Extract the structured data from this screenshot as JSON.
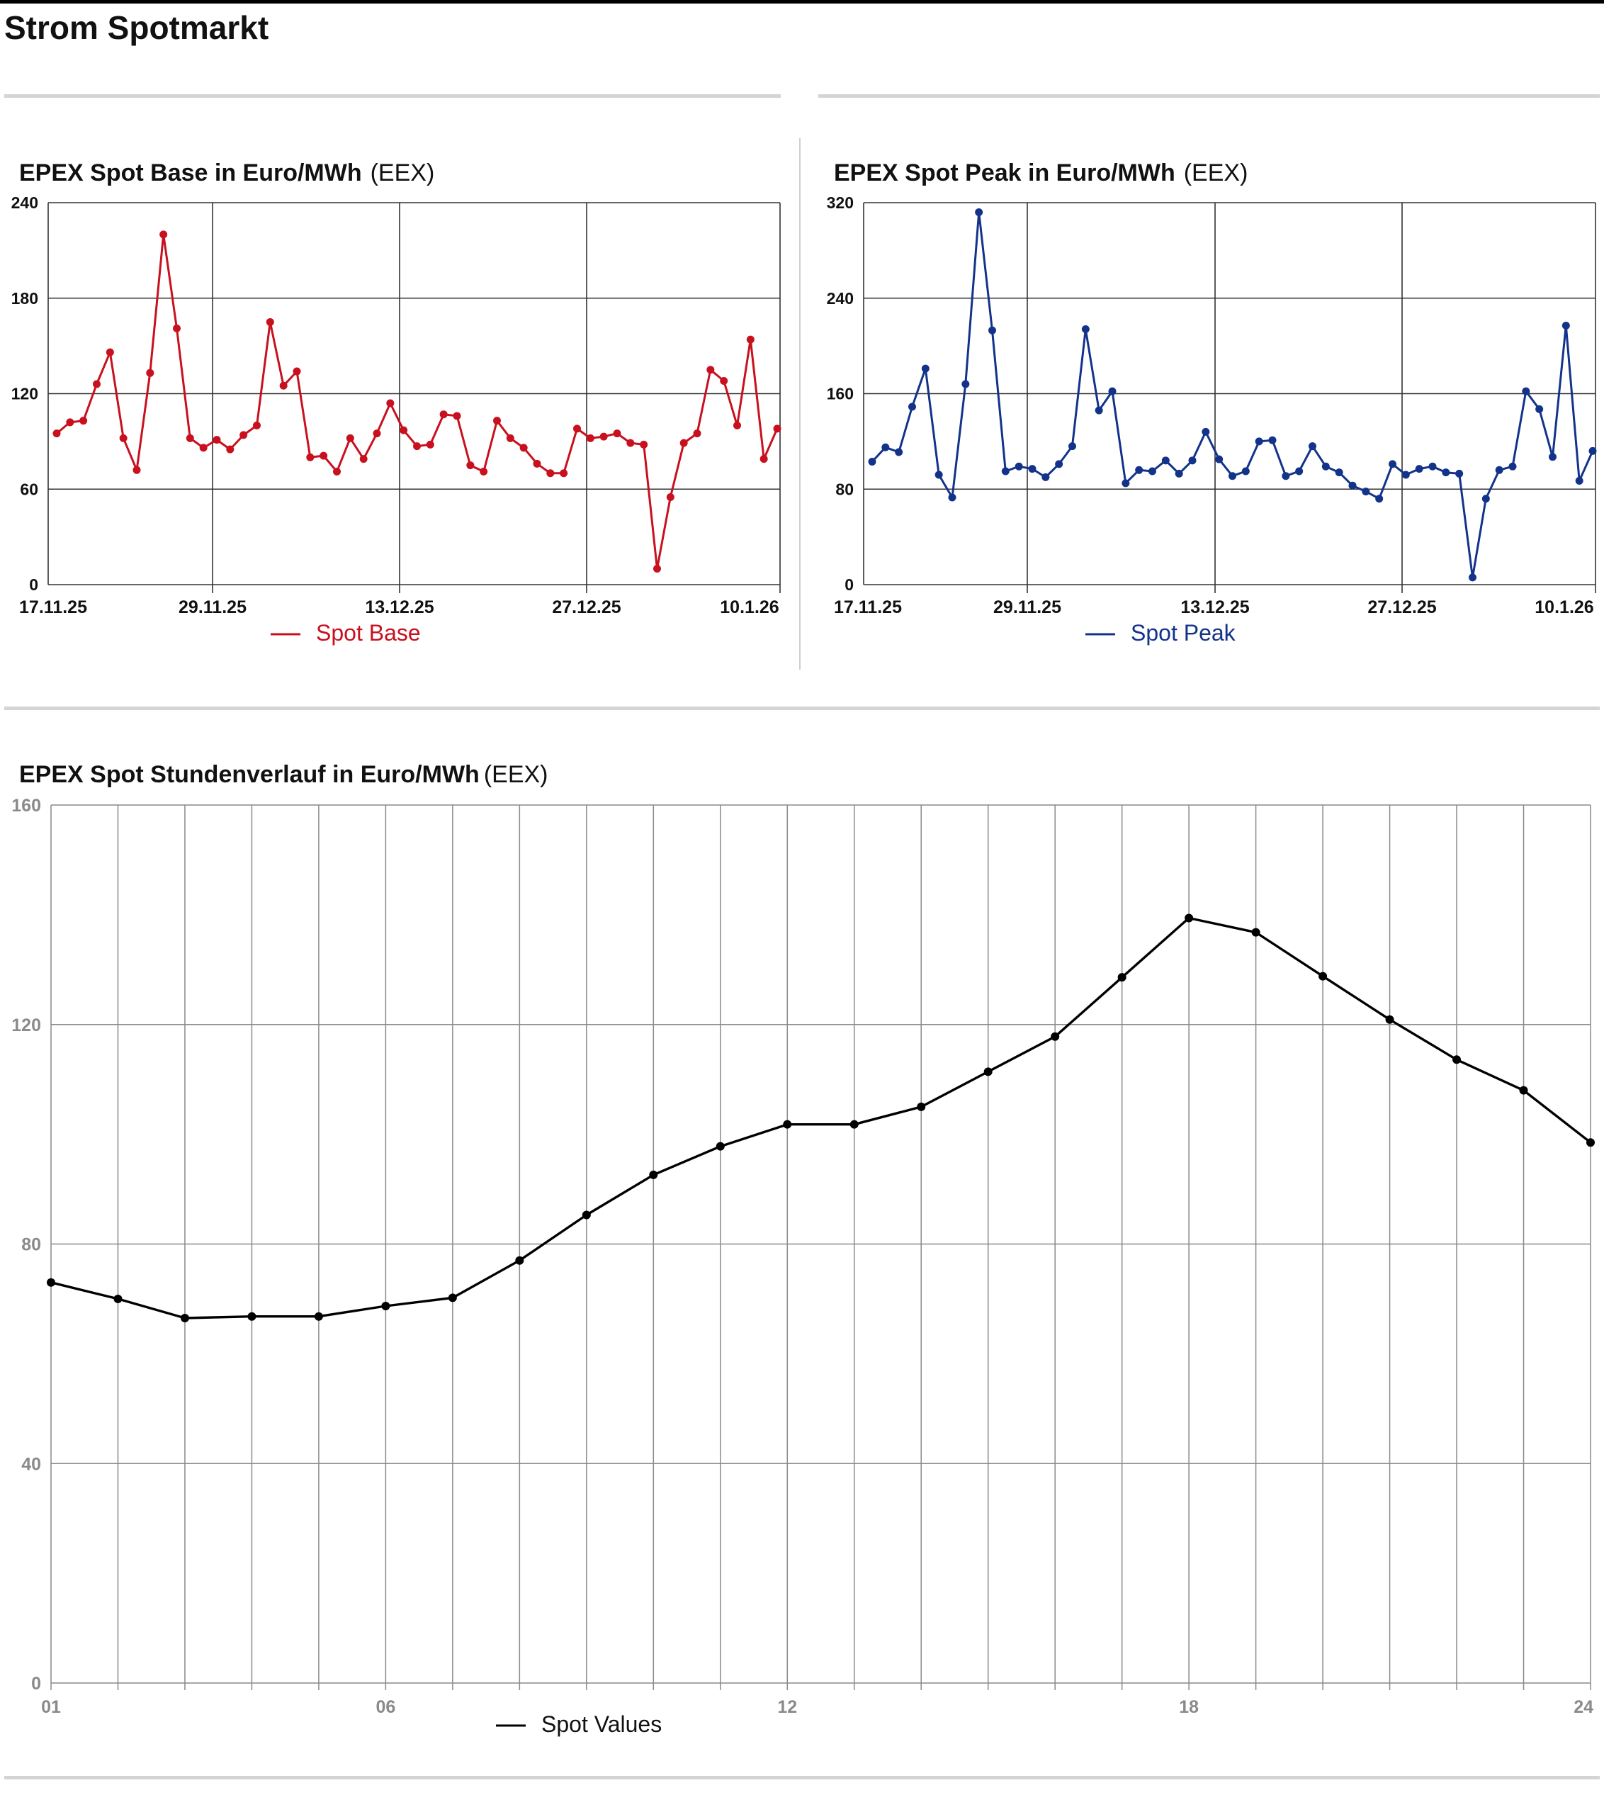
{
  "page": {
    "title": "Strom Spotmarkt"
  },
  "colors": {
    "base": "#c8101e",
    "peak": "#13338a",
    "hourly": "#000000",
    "grid": "#555555",
    "rule": "#d4d4d4"
  },
  "panels": {
    "base": {
      "title": "EPEX Spot Base in Euro/MWh",
      "source": "(EEX)"
    },
    "peak": {
      "title": "EPEX Spot Peak in Euro/MWh",
      "source": "(EEX)"
    },
    "hourly": {
      "title": "EPEX Spot Stundenverlauf in Euro/MWh",
      "source": "(EEX)"
    }
  },
  "chart_data": [
    {
      "id": "base",
      "type": "line",
      "title": "EPEX Spot Base in Euro/MWh",
      "source": "(EEX)",
      "x_labels": [
        "17.11.25",
        "29.11.25",
        "13.12.25",
        "27.12.25",
        "10.1.26"
      ],
      "ylim": [
        0,
        240
      ],
      "yticks": [
        0,
        60,
        120,
        180,
        240
      ],
      "grid": true,
      "legend": "bottom-center",
      "series": [
        {
          "name": "Spot Base",
          "color": "#c8101e",
          "values": [
            95,
            102,
            103,
            126,
            146,
            92,
            72,
            133,
            220,
            161,
            92,
            86,
            91,
            85,
            94,
            100,
            165,
            125,
            134,
            80,
            81,
            71,
            92,
            79,
            95,
            114,
            97,
            87,
            88,
            107,
            106,
            75,
            71,
            103,
            92,
            86,
            76,
            70,
            70,
            98,
            92,
            93,
            95,
            89,
            88,
            10,
            55,
            89,
            95,
            135,
            128,
            100,
            154,
            79,
            98
          ]
        }
      ]
    },
    {
      "id": "peak",
      "type": "line",
      "title": "EPEX Spot Peak in Euro/MWh",
      "source": "(EEX)",
      "x_labels": [
        "17.11.25",
        "29.11.25",
        "13.12.25",
        "27.12.25",
        "10.1.26"
      ],
      "ylim": [
        0,
        320
      ],
      "yticks": [
        0,
        80,
        160,
        240,
        320
      ],
      "grid": true,
      "legend": "bottom-center",
      "series": [
        {
          "name": "Spot Peak",
          "color": "#13338a",
          "values": [
            103,
            115,
            111,
            149,
            181,
            92,
            73,
            168,
            312,
            213,
            95,
            99,
            97,
            90,
            101,
            116,
            214,
            146,
            162,
            85,
            96,
            95,
            104,
            93,
            104,
            128,
            105,
            91,
            95,
            120,
            121,
            91,
            95,
            116,
            99,
            94,
            83,
            78,
            72,
            101,
            92,
            97,
            99,
            94,
            93,
            6,
            72,
            96,
            99,
            162,
            147,
            107,
            217,
            87,
            112
          ]
        }
      ]
    },
    {
      "id": "hourly",
      "type": "line",
      "title": "EPEX Spot Stundenverlauf in Euro/MWh",
      "source": "(EEX)",
      "x_labels": [
        "01",
        "06",
        "12",
        "18",
        "24"
      ],
      "x_label_hours": [
        1,
        6,
        12,
        18,
        24
      ],
      "x": [
        1,
        2,
        3,
        4,
        5,
        6,
        7,
        8,
        9,
        10,
        11,
        12,
        13,
        14,
        15,
        16,
        17,
        18,
        19,
        20,
        21,
        22,
        23,
        24
      ],
      "ylim": [
        0,
        160
      ],
      "yticks": [
        0,
        40,
        80,
        120,
        160
      ],
      "grid": true,
      "legend": "bottom-center",
      "series": [
        {
          "name": "Spot Values",
          "color": "#000000",
          "values": [
            73,
            70,
            66.5,
            66.8,
            66.8,
            68.7,
            70.2,
            77,
            85.3,
            92.6,
            97.8,
            101.8,
            101.8,
            105,
            111.4,
            117.8,
            128.6,
            139.4,
            136.8,
            128.8,
            120.9,
            113.6,
            108,
            98.5
          ]
        }
      ]
    }
  ]
}
